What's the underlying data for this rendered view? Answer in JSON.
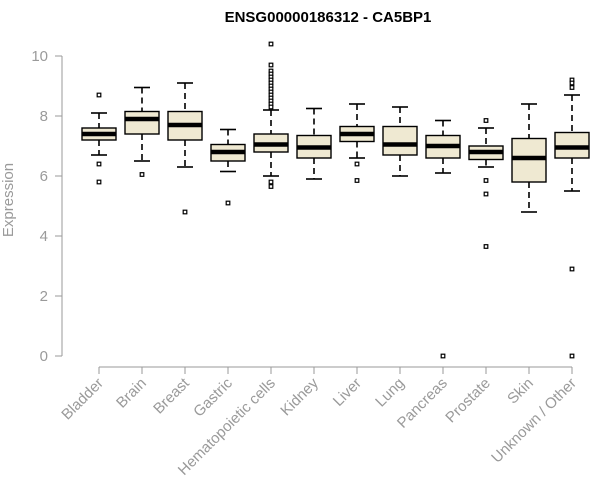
{
  "chart_data": {
    "type": "box",
    "title": "ENSG00000186312 - CA5BP1",
    "xlabel": "",
    "ylabel": "Expression",
    "ylim": [
      0,
      10
    ],
    "yticks": [
      0,
      2,
      4,
      6,
      8,
      10
    ],
    "categories": [
      "Bladder",
      "Brain",
      "Breast",
      "Gastric",
      "Hematopoietic cells",
      "Kidney",
      "Liver",
      "Lung",
      "Pancreas",
      "Prostate",
      "Skin",
      "Unknown / Other"
    ],
    "boxes": [
      {
        "category": "Bladder",
        "whisker_low": 6.7,
        "q1": 7.2,
        "median": 7.4,
        "q3": 7.6,
        "whisker_high": 8.1,
        "outliers": [
          8.7,
          6.4,
          5.8
        ]
      },
      {
        "category": "Brain",
        "whisker_low": 6.5,
        "q1": 7.4,
        "median": 7.9,
        "q3": 8.15,
        "whisker_high": 8.95,
        "outliers": [
          6.05
        ]
      },
      {
        "category": "Breast",
        "whisker_low": 6.3,
        "q1": 7.2,
        "median": 7.7,
        "q3": 8.15,
        "whisker_high": 9.1,
        "outliers": [
          4.8
        ]
      },
      {
        "category": "Gastric",
        "whisker_low": 6.15,
        "q1": 6.5,
        "median": 6.8,
        "q3": 7.05,
        "whisker_high": 7.55,
        "outliers": [
          5.1
        ]
      },
      {
        "category": "Hematopoietic cells",
        "whisker_low": 6.0,
        "q1": 6.8,
        "median": 7.05,
        "q3": 7.4,
        "whisker_high": 8.2,
        "outliers": [
          10.4,
          9.7,
          9.5,
          9.4,
          9.3,
          9.2,
          9.1,
          9.0,
          8.9,
          8.8,
          8.7,
          8.6,
          8.5,
          8.4,
          8.3,
          5.8,
          5.65
        ]
      },
      {
        "category": "Kidney",
        "whisker_low": 5.9,
        "q1": 6.6,
        "median": 6.95,
        "q3": 7.35,
        "whisker_high": 8.25
      },
      {
        "category": "Liver",
        "whisker_low": 6.6,
        "q1": 7.15,
        "median": 7.4,
        "q3": 7.65,
        "whisker_high": 8.4,
        "outliers": [
          6.4,
          5.85
        ]
      },
      {
        "category": "Lung",
        "whisker_low": 6.0,
        "q1": 6.7,
        "median": 7.05,
        "q3": 7.65,
        "whisker_high": 8.3
      },
      {
        "category": "Pancreas",
        "whisker_low": 6.1,
        "q1": 6.6,
        "median": 7.0,
        "q3": 7.35,
        "whisker_high": 7.85,
        "outliers": [
          0.0
        ]
      },
      {
        "category": "Prostate",
        "whisker_low": 6.3,
        "q1": 6.55,
        "median": 6.8,
        "q3": 7.0,
        "whisker_high": 7.6,
        "outliers": [
          7.85,
          5.85,
          5.4,
          3.65
        ]
      },
      {
        "category": "Skin",
        "whisker_low": 4.8,
        "q1": 5.8,
        "median": 6.6,
        "q3": 7.25,
        "whisker_high": 8.4
      },
      {
        "category": "Unknown / Other",
        "whisker_low": 5.5,
        "q1": 6.6,
        "median": 6.95,
        "q3": 7.45,
        "whisker_high": 8.7,
        "outliers": [
          9.2,
          9.1,
          8.95,
          2.9,
          0.0
        ]
      }
    ],
    "colors": {
      "box_fill": "#efe9d2",
      "box_stroke": "#000000",
      "axis": "#9a9a9a",
      "title": "#000000"
    },
    "grid": false,
    "legend": "none"
  }
}
